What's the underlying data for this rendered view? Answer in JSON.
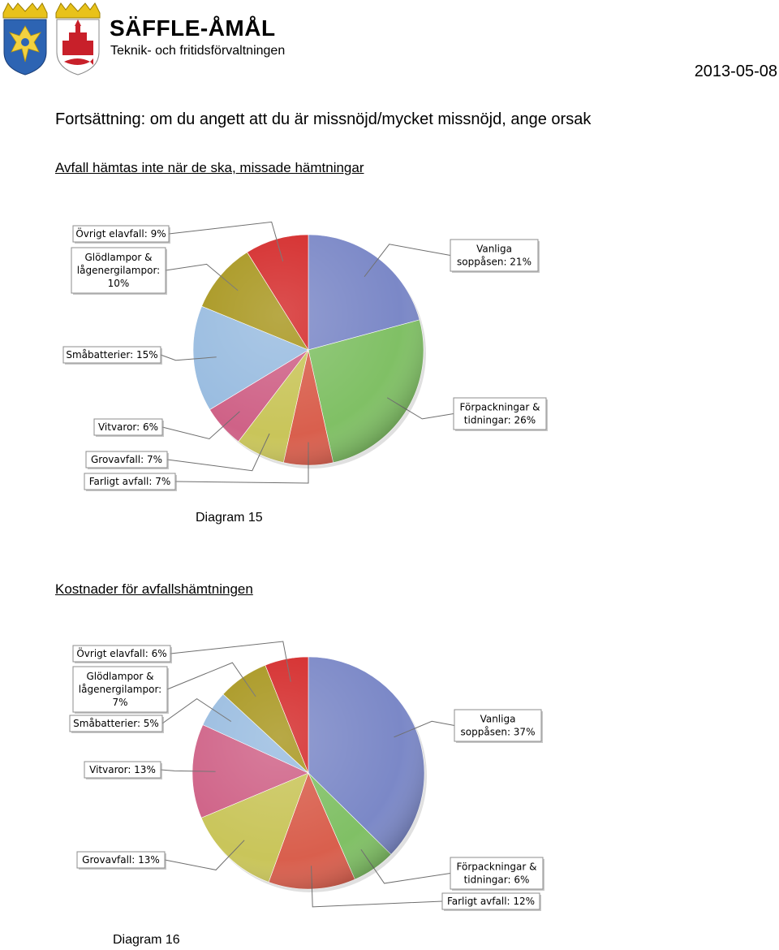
{
  "header": {
    "org_name": "SÄFFLE-ÅMÅL",
    "org_subtitle": "Teknik- och fritidsförvaltningen",
    "date": "2013-05-08"
  },
  "page": {
    "heading": "Fortsättning: om du angett att du är missnöjd/mycket missnöjd, ange orsak"
  },
  "colors": {
    "blue": "#7b88c7",
    "green": "#80c065",
    "orange": "#d95f4d",
    "yellow": "#c9c55a",
    "pink": "#cf6287",
    "lightblue": "#99bce0",
    "olive": "#a8961e",
    "red": "#d42a2a"
  },
  "chart_data": [
    {
      "type": "pie",
      "title": "Avfall hämtas inte när de ska, missade hämtningar",
      "caption": "Diagram 15",
      "slices": [
        {
          "label": "Vanliga soppåsen",
          "value": 21,
          "color": "#7b88c7",
          "text": [
            "Vanliga",
            "soppåsen: 21%"
          ]
        },
        {
          "label": "Förpackningar & tidningar",
          "value": 26,
          "color": "#80c065",
          "text": [
            "Förpackningar &",
            "tidningar: 26%"
          ]
        },
        {
          "label": "Farligt avfall",
          "value": 7,
          "color": "#d95f4d",
          "text": [
            "Farligt avfall: 7%"
          ]
        },
        {
          "label": "Grovavfall",
          "value": 7,
          "color": "#c9c55a",
          "text": [
            "Grovavfall: 7%"
          ]
        },
        {
          "label": "Vitvaror",
          "value": 6,
          "color": "#cf6287",
          "text": [
            "Vitvaror: 6%"
          ]
        },
        {
          "label": "Småbatterier",
          "value": 15,
          "color": "#99bce0",
          "text": [
            "Småbatterier: 15%"
          ]
        },
        {
          "label": "Glödlampor & lågenergilampor",
          "value": 10,
          "color": "#a8961e",
          "text": [
            "Glödlampor &",
            "lågenergilampor:",
            "10%"
          ]
        },
        {
          "label": "Övrigt elavfall",
          "value": 9,
          "color": "#d42a2a",
          "text": [
            "Övrigt elavfall: 9%"
          ]
        }
      ]
    },
    {
      "type": "pie",
      "title": "Kostnader för avfallshämtningen",
      "caption": "Diagram 16",
      "slices": [
        {
          "label": "Vanliga soppåsen",
          "value": 37,
          "color": "#7b88c7",
          "text": [
            "Vanliga",
            "soppåsen: 37%"
          ]
        },
        {
          "label": "Förpackningar & tidningar",
          "value": 6,
          "color": "#80c065",
          "text": [
            "Förpackningar &",
            "tidningar: 6%"
          ]
        },
        {
          "label": "Farligt avfall",
          "value": 12,
          "color": "#d95f4d",
          "text": [
            "Farligt avfall: 12%"
          ]
        },
        {
          "label": "Grovavfall",
          "value": 13,
          "color": "#c9c55a",
          "text": [
            "Grovavfall: 13%"
          ]
        },
        {
          "label": "Vitvaror",
          "value": 13,
          "color": "#cf6287",
          "text": [
            "Vitvaror: 13%"
          ]
        },
        {
          "label": "Småbatterier",
          "value": 5,
          "color": "#99bce0",
          "text": [
            "Småbatterier: 5%"
          ]
        },
        {
          "label": "Glödlampor & lågenergilampor",
          "value": 7,
          "color": "#a8961e",
          "text": [
            "Glödlampor &",
            "lågenergilampor:",
            "7%"
          ]
        },
        {
          "label": "Övrigt elavfall",
          "value": 6,
          "color": "#d42a2a",
          "text": [
            "Övrigt elavfall: 6%"
          ]
        }
      ]
    }
  ]
}
